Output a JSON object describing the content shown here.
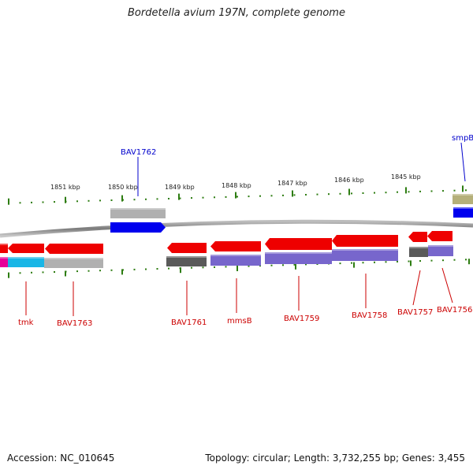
{
  "title": "Bordetella avium 197N, complete genome",
  "footer": {
    "accession": "Accession: NC_010645",
    "summary": "Topology: circular; Length: 3,732,255 bp; Genes: 3,455"
  },
  "scale_labels": [
    "1851 kbp",
    "1850 kbp",
    "1849 kbp",
    "1848 kbp",
    "1847 kbp",
    "1846 kbp",
    "1845 kbp"
  ],
  "top_genes": [
    {
      "name": "BAV1762",
      "color": "#0000cc"
    },
    {
      "name": "smpB",
      "color": "#0000cc"
    }
  ],
  "bottom_genes": [
    {
      "name": "tmk",
      "color": "#cc0000"
    },
    {
      "name": "BAV1763",
      "color": "#cc0000"
    },
    {
      "name": "BAV1761",
      "color": "#cc0000"
    },
    {
      "name": "mmsB",
      "color": "#cc0000"
    },
    {
      "name": "BAV1759",
      "color": "#cc0000"
    },
    {
      "name": "BAV1758",
      "color": "#cc0000"
    },
    {
      "name": "BAV1757",
      "color": "#cc0000"
    },
    {
      "name": "BAV1756",
      "color": "#cc0000"
    }
  ],
  "colors": {
    "backbone": "#8c8c8c",
    "forward_cds": "#0000ee",
    "reverse_cds": "#ee0000",
    "tick": "#2e7d12",
    "purple_feature": "#7766cc",
    "gray_feature": "#b0b0b0",
    "dark_gray_feature": "#5a5a5a",
    "cyan_feature": "#19b6e6",
    "magenta_feature": "#e60099",
    "olive_feature": "#b5b07a"
  }
}
